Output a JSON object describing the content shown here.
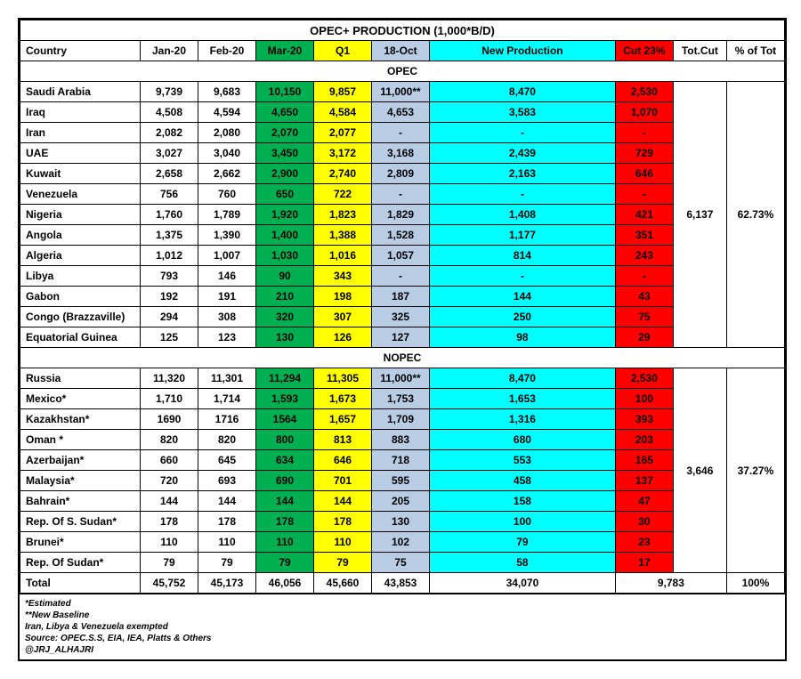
{
  "title": "OPEC+ PRODUCTION (1,000*B/D)",
  "colors": {
    "green": "#00b050",
    "yellow": "#ffff00",
    "bluegrey": "#b8cce4",
    "cyan": "#00ffff",
    "red": "#ff0000",
    "white": "#ffffff"
  },
  "headers": [
    "Country",
    "Jan-20",
    "Feb-20",
    "Mar-20",
    "Q1",
    "18-Oct",
    "New Production",
    "Cut 23%",
    "Tot.Cut",
    "% of Tot"
  ],
  "sections": [
    {
      "label": "OPEC",
      "totcut": "6,137",
      "pct": "62.73%",
      "rows": [
        {
          "c": "Saudi Arabia",
          "jan": "9,739",
          "feb": "9,683",
          "mar": "10,150",
          "q1": "9,857",
          "oct": "11,000**",
          "np": "8,470",
          "cut": "2,530"
        },
        {
          "c": "Iraq",
          "jan": "4,508",
          "feb": "4,594",
          "mar": "4,650",
          "q1": "4,584",
          "oct": "4,653",
          "np": "3,583",
          "cut": "1,070"
        },
        {
          "c": "Iran",
          "jan": "2,082",
          "feb": "2,080",
          "mar": "2,070",
          "q1": "2,077",
          "oct": "-",
          "np": "-",
          "cut": "-"
        },
        {
          "c": "UAE",
          "jan": "3,027",
          "feb": "3,040",
          "mar": "3,450",
          "q1": "3,172",
          "oct": "3,168",
          "np": "2,439",
          "cut": "729"
        },
        {
          "c": "Kuwait",
          "jan": "2,658",
          "feb": "2,662",
          "mar": "2,900",
          "q1": "2,740",
          "oct": "2,809",
          "np": "2,163",
          "cut": "646"
        },
        {
          "c": "Venezuela",
          "jan": "756",
          "feb": "760",
          "mar": "650",
          "q1": "722",
          "oct": "-",
          "np": "-",
          "cut": "-"
        },
        {
          "c": "Nigeria",
          "jan": "1,760",
          "feb": "1,789",
          "mar": "1,920",
          "q1": "1,823",
          "oct": "1,829",
          "np": "1,408",
          "cut": "421"
        },
        {
          "c": "Angola",
          "jan": "1,375",
          "feb": "1,390",
          "mar": "1,400",
          "q1": "1,388",
          "oct": "1,528",
          "np": "1,177",
          "cut": "351"
        },
        {
          "c": "Algeria",
          "jan": "1,012",
          "feb": "1,007",
          "mar": "1,030",
          "q1": "1,016",
          "oct": "1,057",
          "np": "814",
          "cut": "243"
        },
        {
          "c": "Libya",
          "jan": "793",
          "feb": "146",
          "mar": "90",
          "q1": "343",
          "oct": "-",
          "np": "-",
          "cut": "-"
        },
        {
          "c": "Gabon",
          "jan": "192",
          "feb": "191",
          "mar": "210",
          "q1": "198",
          "oct": "187",
          "np": "144",
          "cut": "43"
        },
        {
          "c": "Congo (Brazzaville)",
          "jan": "294",
          "feb": "308",
          "mar": "320",
          "q1": "307",
          "oct": "325",
          "np": "250",
          "cut": "75"
        },
        {
          "c": "Equatorial Guinea",
          "jan": "125",
          "feb": "123",
          "mar": "130",
          "q1": "126",
          "oct": "127",
          "np": "98",
          "cut": "29"
        }
      ]
    },
    {
      "label": "NOPEC",
      "totcut": "3,646",
      "pct": "37.27%",
      "rows": [
        {
          "c": "Russia",
          "jan": "11,320",
          "feb": "11,301",
          "mar": "11,294",
          "q1": "11,305",
          "oct": "11,000**",
          "np": "8,470",
          "cut": "2,530"
        },
        {
          "c": "Mexico*",
          "jan": "1,710",
          "feb": "1,714",
          "mar": "1,593",
          "q1": "1,673",
          "oct": "1,753",
          "np": "1,653",
          "cut": "100"
        },
        {
          "c": "Kazakhstan*",
          "jan": "1690",
          "feb": "1716",
          "mar": "1564",
          "q1": "1,657",
          "oct": "1,709",
          "np": "1,316",
          "cut": "393"
        },
        {
          "c": "Oman *",
          "jan": "820",
          "feb": "820",
          "mar": "800",
          "q1": "813",
          "oct": "883",
          "np": "680",
          "cut": "203"
        },
        {
          "c": "Azerbaijan*",
          "jan": "660",
          "feb": "645",
          "mar": "634",
          "q1": "646",
          "oct": "718",
          "np": "553",
          "cut": "165"
        },
        {
          "c": "Malaysia*",
          "jan": "720",
          "feb": "693",
          "mar": "690",
          "q1": "701",
          "oct": "595",
          "np": "458",
          "cut": "137"
        },
        {
          "c": "Bahrain*",
          "jan": "144",
          "feb": "144",
          "mar": "144",
          "q1": "144",
          "oct": "205",
          "np": "158",
          "cut": "47"
        },
        {
          "c": "Rep. Of S. Sudan*",
          "jan": "178",
          "feb": "178",
          "mar": "178",
          "q1": "178",
          "oct": "130",
          "np": "100",
          "cut": "30"
        },
        {
          "c": "Brunei*",
          "jan": "110",
          "feb": "110",
          "mar": "110",
          "q1": "110",
          "oct": "102",
          "np": "79",
          "cut": "23"
        },
        {
          "c": "Rep. Of Sudan*",
          "jan": "79",
          "feb": "79",
          "mar": "79",
          "q1": "79",
          "oct": "75",
          "np": "58",
          "cut": "17"
        }
      ]
    }
  ],
  "total": {
    "label": "Total",
    "jan": "45,752",
    "feb": "45,173",
    "mar": "46,056",
    "q1": "45,660",
    "oct": "43,853",
    "np": "34,070",
    "cut": "9,783",
    "pct": "100%"
  },
  "footnotes": [
    "*Estimated",
    "**New Baseline",
    "Iran, Libya & Venezuela exempted",
    "Source: OPEC.S.S, EIA, IEA, Platts & Others",
    "@JRJ_ALHAJRI"
  ]
}
